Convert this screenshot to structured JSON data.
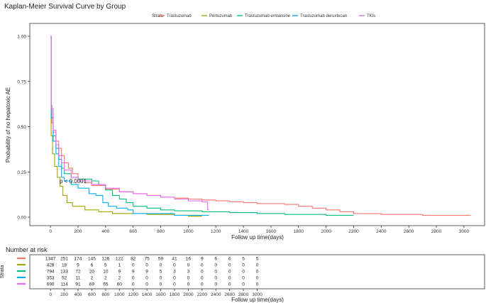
{
  "chart_data": {
    "type": "line",
    "title": "Kaplan-Meier Survival Curve by Group",
    "xlabel": "Follow up time(days)",
    "ylabel": "Probability of no hepatoxic AE",
    "xlim": [
      -150,
      3150
    ],
    "ylim": [
      0,
      1
    ],
    "x_ticks": [
      0,
      200,
      400,
      600,
      800,
      1000,
      1200,
      1400,
      1600,
      1800,
      2000,
      2200,
      2400,
      2600,
      2800,
      3000
    ],
    "y_ticks": [
      0,
      0.25,
      0.5,
      0.75,
      1
    ],
    "y_tick_labels": [
      "0.00",
      "0.25",
      "0.50",
      "0.75",
      "1.00"
    ],
    "legend_title": "Strata",
    "legend_position": "top",
    "annotation": "p < 0.0001",
    "series": [
      {
        "name": "Trastuzumab",
        "color": "#F8766D",
        "points": [
          [
            0,
            1
          ],
          [
            5,
            0.62
          ],
          [
            10,
            0.52
          ],
          [
            20,
            0.47
          ],
          [
            40,
            0.42
          ],
          [
            60,
            0.38
          ],
          [
            80,
            0.34
          ],
          [
            100,
            0.3
          ],
          [
            130,
            0.27
          ],
          [
            160,
            0.24
          ],
          [
            200,
            0.21
          ],
          [
            250,
            0.19
          ],
          [
            300,
            0.175
          ],
          [
            400,
            0.155
          ],
          [
            500,
            0.14
          ],
          [
            600,
            0.13
          ],
          [
            700,
            0.12
          ],
          [
            800,
            0.11
          ],
          [
            900,
            0.105
          ],
          [
            1000,
            0.1
          ],
          [
            1100,
            0.095
          ],
          [
            1200,
            0.09
          ],
          [
            1300,
            0.085
          ],
          [
            1400,
            0.08
          ],
          [
            1500,
            0.075
          ],
          [
            1700,
            0.07
          ],
          [
            1800,
            0.06
          ],
          [
            1900,
            0.05
          ],
          [
            2000,
            0.04
          ],
          [
            2100,
            0.03
          ],
          [
            2200,
            0.02
          ],
          [
            2400,
            0.015
          ],
          [
            2700,
            0.01
          ],
          [
            3050,
            0.01
          ]
        ]
      },
      {
        "name": "Pertuzumab",
        "color": "#A3A500",
        "points": [
          [
            0,
            1
          ],
          [
            5,
            0.45
          ],
          [
            15,
            0.35
          ],
          [
            30,
            0.28
          ],
          [
            50,
            0.22
          ],
          [
            70,
            0.17
          ],
          [
            90,
            0.12
          ],
          [
            120,
            0.08
          ],
          [
            160,
            0.06
          ],
          [
            250,
            0.04
          ],
          [
            350,
            0.03
          ],
          [
            450,
            0.02
          ],
          [
            700,
            0.015
          ],
          [
            900,
            0.01
          ],
          [
            1000,
            0.005
          ],
          [
            1100,
            0.005
          ]
        ]
      },
      {
        "name": "Trastuzumab emtansine",
        "color": "#00BF7D",
        "points": [
          [
            0,
            1
          ],
          [
            5,
            0.55
          ],
          [
            20,
            0.45
          ],
          [
            40,
            0.38
          ],
          [
            60,
            0.32
          ],
          [
            80,
            0.27
          ],
          [
            100,
            0.24
          ],
          [
            150,
            0.22
          ],
          [
            200,
            0.21
          ],
          [
            300,
            0.2
          ],
          [
            350,
            0.18
          ],
          [
            400,
            0.15
          ],
          [
            450,
            0.12
          ],
          [
            500,
            0.1
          ],
          [
            550,
            0.08
          ],
          [
            600,
            0.06
          ],
          [
            700,
            0.05
          ],
          [
            800,
            0.04
          ],
          [
            900,
            0.035
          ],
          [
            1100,
            0.03
          ],
          [
            1300,
            0.025
          ],
          [
            1500,
            0.02
          ],
          [
            1700,
            0.015
          ],
          [
            2000,
            0.01
          ],
          [
            2200,
            0.01
          ]
        ]
      },
      {
        "name": "Trastuzumab deruxtecan",
        "color": "#00B0F6",
        "points": [
          [
            0,
            1
          ],
          [
            5,
            0.55
          ],
          [
            20,
            0.42
          ],
          [
            40,
            0.35
          ],
          [
            60,
            0.28
          ],
          [
            80,
            0.22
          ],
          [
            100,
            0.2
          ],
          [
            150,
            0.18
          ],
          [
            200,
            0.16
          ],
          [
            280,
            0.13
          ],
          [
            330,
            0.12
          ],
          [
            380,
            0.08
          ],
          [
            420,
            0.06
          ],
          [
            480,
            0.05
          ],
          [
            560,
            0.04
          ],
          [
            600,
            0.02
          ],
          [
            800,
            0.02
          ],
          [
            900,
            0.01
          ],
          [
            1150,
            0.01
          ]
        ]
      },
      {
        "name": "TKIs",
        "color": "#E76BF3",
        "points": [
          [
            0,
            1
          ],
          [
            5,
            0.6
          ],
          [
            20,
            0.48
          ],
          [
            40,
            0.4
          ],
          [
            60,
            0.34
          ],
          [
            80,
            0.3
          ],
          [
            100,
            0.26
          ],
          [
            150,
            0.22
          ],
          [
            200,
            0.2
          ],
          [
            300,
            0.18
          ],
          [
            400,
            0.16
          ],
          [
            500,
            0.14
          ],
          [
            600,
            0.13
          ],
          [
            700,
            0.12
          ],
          [
            800,
            0.11
          ],
          [
            900,
            0.1
          ],
          [
            1000,
            0.09
          ],
          [
            1100,
            0.085
          ],
          [
            1140,
            0.04
          ],
          [
            1150,
            0.04
          ]
        ]
      }
    ],
    "risk_table": {
      "title": "Number at risk",
      "ylabel": "Strata",
      "xlabel": "Follow up time(days)",
      "times": [
        0,
        200,
        400,
        600,
        800,
        1000,
        1200,
        1400,
        1600,
        1800,
        2000,
        2200,
        2400,
        2600,
        2800,
        3000
      ],
      "columns": [
        0,
        100,
        200,
        300,
        400,
        500,
        600,
        700,
        800,
        900,
        1000,
        1100,
        1200,
        1300,
        1400,
        1500
      ],
      "rows": [
        {
          "color": "#F8766D",
          "values": [
            "1347",
            "251",
            "174",
            "145",
            "126",
            "122",
            "82",
            "75",
            "59",
            "41",
            "16",
            "9",
            "6",
            "6",
            "5",
            "5"
          ]
        },
        {
          "color": "#A3A500",
          "values": [
            "428",
            "18",
            "9",
            "6",
            "5",
            "1",
            "0",
            "0",
            "0",
            "0",
            "0",
            "0",
            "0",
            "0",
            "0",
            "0"
          ]
        },
        {
          "color": "#00BF7D",
          "values": [
            "794",
            "133",
            "72",
            "20",
            "10",
            "9",
            "9",
            "9",
            "5",
            "3",
            "3",
            "0",
            "0",
            "0",
            "0",
            "0"
          ]
        },
        {
          "color": "#00B0F6",
          "values": [
            "353",
            "52",
            "11",
            "2",
            "2",
            "2",
            "0",
            "0",
            "0",
            "0",
            "0",
            "0",
            "0",
            "0",
            "0",
            "0"
          ]
        },
        {
          "color": "#E76BF3",
          "values": [
            "690",
            "114",
            "91",
            "69",
            "65",
            "60",
            "0",
            "0",
            "0",
            "0",
            "0",
            "0",
            "0",
            "0",
            "0",
            "0"
          ]
        }
      ]
    }
  }
}
